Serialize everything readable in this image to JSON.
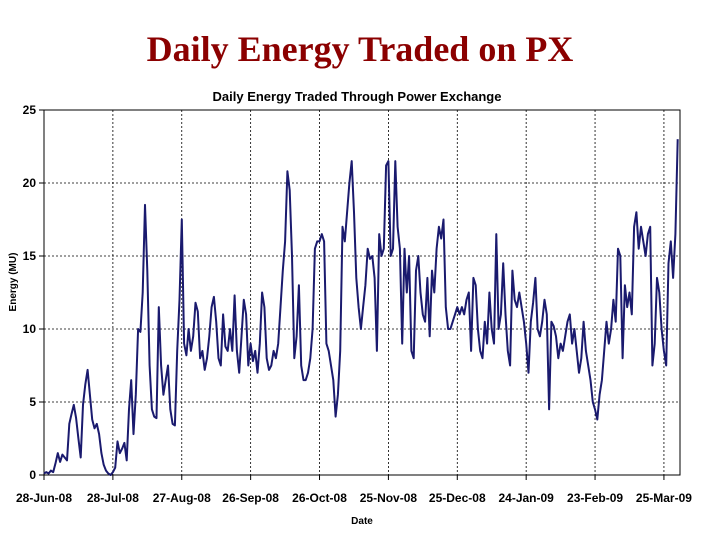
{
  "slide": {
    "title": "Daily Energy Traded on PX"
  },
  "chart_data": {
    "type": "line",
    "title": "Daily Energy Traded Through Power Exchange",
    "xlabel": "Date",
    "ylabel": "Energy (MU)",
    "ylim": [
      0,
      25
    ],
    "xlim": [
      0,
      277
    ],
    "grid": true,
    "line_color": "#1a1a6e",
    "yticks": [
      0,
      5,
      10,
      15,
      20,
      25
    ],
    "xticks": [
      {
        "label": "28-Jun-08",
        "day": 0
      },
      {
        "label": "28-Jul-08",
        "day": 30
      },
      {
        "label": "27-Aug-08",
        "day": 60
      },
      {
        "label": "26-Sep-08",
        "day": 90
      },
      {
        "label": "26-Oct-08",
        "day": 120
      },
      {
        "label": "25-Nov-08",
        "day": 150
      },
      {
        "label": "25-Dec-08",
        "day": 180
      },
      {
        "label": "24-Jan-09",
        "day": 210
      },
      {
        "label": "23-Feb-09",
        "day": 240
      },
      {
        "label": "25-Mar-09",
        "day": 270
      }
    ],
    "series": [
      {
        "name": "Daily Energy",
        "x_start_day": 0,
        "values": [
          0.1,
          0.2,
          0.1,
          0.3,
          0.2,
          0.8,
          1.5,
          0.9,
          1.4,
          1.2,
          1.0,
          3.5,
          4.2,
          4.8,
          3.9,
          2.5,
          1.2,
          4.8,
          6.2,
          7.2,
          5.5,
          3.8,
          3.2,
          3.5,
          2.8,
          1.5,
          0.7,
          0.3,
          0.1,
          0.0,
          0.2,
          0.5,
          2.3,
          1.5,
          1.8,
          2.2,
          1.0,
          4.5,
          6.5,
          2.8,
          5.5,
          10.0,
          9.8,
          12.5,
          18.5,
          14.0,
          7.5,
          4.5,
          4.0,
          3.9,
          11.5,
          7.5,
          5.5,
          6.5,
          7.5,
          4.5,
          3.5,
          3.4,
          8.5,
          12.0,
          17.5,
          9.0,
          8.2,
          10.0,
          8.5,
          9.5,
          11.8,
          11.2,
          8.0,
          8.5,
          7.2,
          8.0,
          9.5,
          11.5,
          12.2,
          10.5,
          8.0,
          7.5,
          11.0,
          8.8,
          8.5,
          10.0,
          8.5,
          12.3,
          8.5,
          7.0,
          9.5,
          12.0,
          11.0,
          7.5,
          9.0,
          7.8,
          8.5,
          7.0,
          9.0,
          12.5,
          11.5,
          8.0,
          7.2,
          7.5,
          8.5,
          8.0,
          9.0,
          11.5,
          14.0,
          16.0,
          20.8,
          19.5,
          15.0,
          8.0,
          9.5,
          13.0,
          7.5,
          6.5,
          6.5,
          7.0,
          8.0,
          10.0,
          15.5,
          16.0,
          16.0,
          16.5,
          16.0,
          9.0,
          8.5,
          7.5,
          6.5,
          4.0,
          5.5,
          8.5,
          17.0,
          16.0,
          18.0,
          20.0,
          21.5,
          18.0,
          13.5,
          11.5,
          10.0,
          11.5,
          13.0,
          15.5,
          14.8,
          15.0,
          13.5,
          8.5,
          16.5,
          15.0,
          15.5,
          21.2,
          21.5,
          15.0,
          15.5,
          21.5,
          17.0,
          15.5,
          9.0,
          15.5,
          12.5,
          15.0,
          8.5,
          8.0,
          14.0,
          15.0,
          12.5,
          11.0,
          10.5,
          13.5,
          9.5,
          14.0,
          12.5,
          15.5,
          17.0,
          16.2,
          17.5,
          11.5,
          10.0,
          10.0,
          10.5,
          11.0,
          11.5,
          11.0,
          11.5,
          11.0,
          12.0,
          12.5,
          8.5,
          13.5,
          13.0,
          10.0,
          8.5,
          8.0,
          10.5,
          9.0,
          12.5,
          10.0,
          9.0,
          16.5,
          10.0,
          11.0,
          14.5,
          11.0,
          8.5,
          7.5,
          14.0,
          12.0,
          11.5,
          12.5,
          11.5,
          10.5,
          9.0,
          7.0,
          10.5,
          11.8,
          13.5,
          10.0,
          9.5,
          10.5,
          12.0,
          11.0,
          4.5,
          10.5,
          10.2,
          9.5,
          8.0,
          9.0,
          8.5,
          9.5,
          10.5,
          11.0,
          9.0,
          10.0,
          8.5,
          7.0,
          8.0,
          10.5,
          8.5,
          7.5,
          6.5,
          5.0,
          4.5,
          3.8,
          5.5,
          6.5,
          8.5,
          10.5,
          9.0,
          10.0,
          12.0,
          10.5,
          15.5,
          15.0,
          8.0,
          13.0,
          11.5,
          12.5,
          11.0,
          17.0,
          18.0,
          15.5,
          17.0,
          16.0,
          15.0,
          16.5,
          17.0,
          7.5,
          9.0,
          13.5,
          12.5,
          10.0,
          8.5,
          7.5,
          14.5,
          16.0,
          13.5,
          16.5,
          23.0
        ]
      }
    ]
  }
}
